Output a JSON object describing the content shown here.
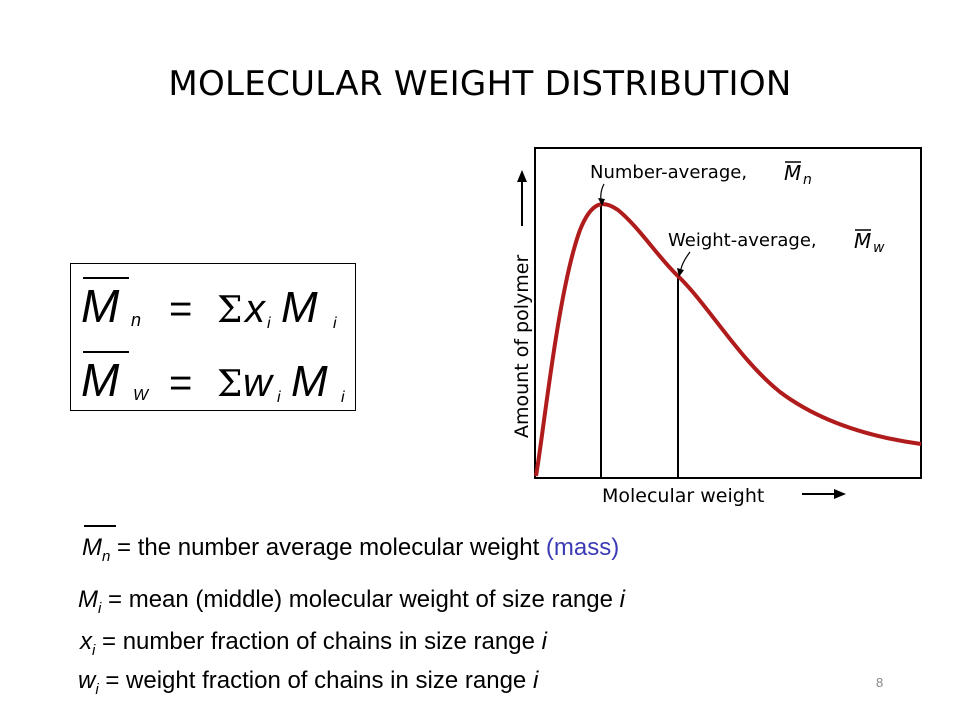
{
  "slide": {
    "title": "MOLECULAR WEIGHT DISTRIBUTION",
    "page_number": "8"
  },
  "formulas": {
    "mn": {
      "lhs": "M",
      "lhs_sub": "n",
      "eq": "=",
      "sigma": "Σ",
      "var": "x",
      "var_sub": "i",
      "M": "M",
      "M_sub": "i"
    },
    "mw": {
      "lhs": "M",
      "lhs_sub": "W",
      "eq": "=",
      "sigma": "Σ",
      "var": "w",
      "var_sub": "i",
      "M": "M",
      "M_sub": "i"
    }
  },
  "graph": {
    "y_axis_label": "Amount of polymer",
    "x_axis_label": "Molecular weight",
    "number_average_label": "Number-average,",
    "number_average_symbol": "M",
    "number_average_sub": "n",
    "weight_average_label": "Weight-average,",
    "weight_average_symbol": "M",
    "weight_average_sub": "w",
    "curve_color": "#b01c1c"
  },
  "definitions": [
    {
      "sym": "M",
      "sub": "n",
      "text": " = the number average molecular weight ",
      "accent": "(mass)"
    },
    {
      "sym": "M",
      "sub": "i",
      "text": " = mean (middle) molecular weight of size range ",
      "tail": "i"
    },
    {
      "sym": "x",
      "sub": "i",
      "text": " = number fraction of chains in size range ",
      "tail": "i"
    },
    {
      "sym": "w",
      "sub": "i",
      "text": " = weight fraction of chains in size range ",
      "tail": "i"
    }
  ]
}
